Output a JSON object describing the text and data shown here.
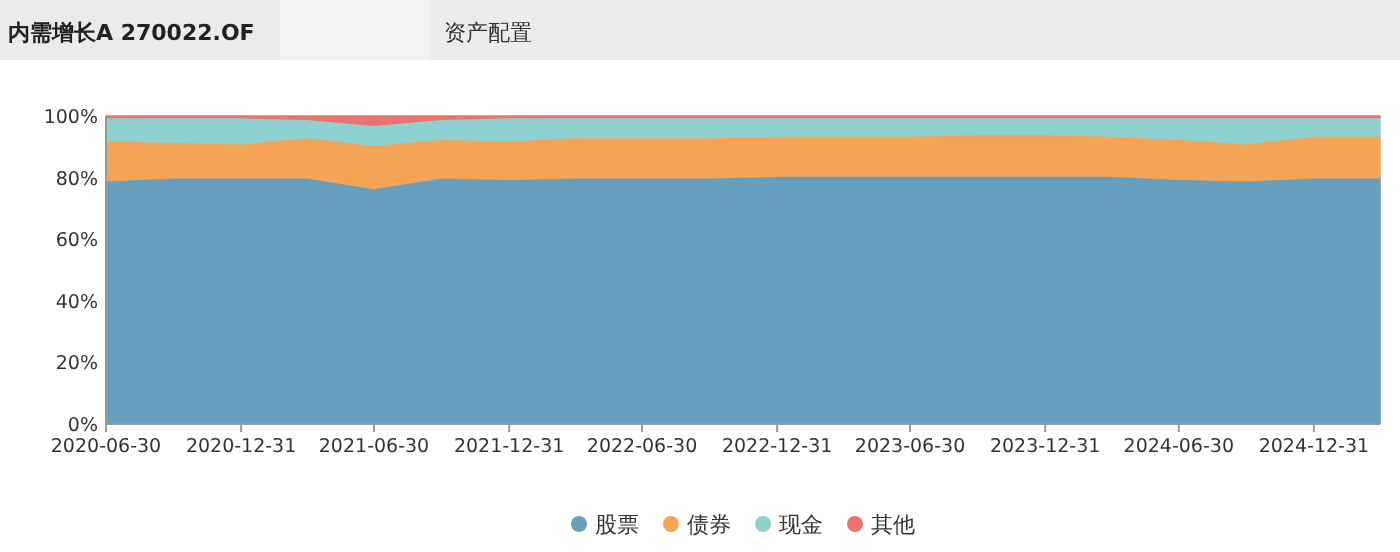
{
  "chart_data": {
    "type": "area",
    "title": "内需增长A 270022.OF",
    "subtitle": "资产配置",
    "stacked": true,
    "x": [
      "2020-06-30",
      "2020-09-30",
      "2020-12-31",
      "2021-03-31",
      "2021-06-30",
      "2021-09-30",
      "2021-12-31",
      "2022-03-31",
      "2022-06-30",
      "2022-09-30",
      "2022-12-31",
      "2023-03-31",
      "2023-06-30",
      "2023-09-30",
      "2023-12-31",
      "2024-03-31",
      "2024-06-30",
      "2024-09-30",
      "2024-12-31",
      "2025-03-31"
    ],
    "series": [
      {
        "name": "股票",
        "color": "#67a0bf",
        "values": [
          79,
          80,
          80,
          80,
          76.5,
          80,
          79.5,
          80,
          80,
          80,
          80.5,
          80.5,
          80.5,
          80.5,
          80.5,
          80.5,
          79.5,
          79,
          80,
          80
        ]
      },
      {
        "name": "债券",
        "color": "#f5a455",
        "values": [
          13,
          11.5,
          11,
          13,
          14,
          12.5,
          12.5,
          13,
          13,
          13,
          13,
          13,
          13,
          13.5,
          13.5,
          13,
          13,
          12,
          13.5,
          13.5
        ]
      },
      {
        "name": "现金",
        "color": "#8fd0d0",
        "values": [
          7.5,
          8,
          8.5,
          6,
          6.5,
          6.5,
          7.5,
          6.5,
          6.5,
          6.5,
          6,
          6,
          6,
          5.5,
          5.5,
          6,
          7,
          8.5,
          6,
          6
        ]
      },
      {
        "name": "其他",
        "color": "#e8736f",
        "values": [
          0.5,
          0.5,
          0.5,
          1,
          3,
          1,
          0.5,
          0.5,
          0.5,
          0.5,
          0.5,
          0.5,
          0.5,
          0.5,
          0.5,
          0.5,
          0.5,
          0.5,
          0.5,
          0.5
        ]
      }
    ],
    "xlim": [
      "2020-06-30",
      "2025-03-31"
    ],
    "xticks": [
      "2020-06-30",
      "2020-12-31",
      "2021-06-30",
      "2021-12-31",
      "2022-06-30",
      "2022-12-31",
      "2023-06-30",
      "2023-12-31",
      "2024-06-30",
      "2024-12-31"
    ],
    "ylim": [
      0,
      100
    ],
    "yticks": [
      {
        "value": 0,
        "label": "0%"
      },
      {
        "value": 20,
        "label": "20%"
      },
      {
        "value": 40,
        "label": "40%"
      },
      {
        "value": 60,
        "label": "60%"
      },
      {
        "value": 80,
        "label": "80%"
      },
      {
        "value": 100,
        "label": "100%"
      }
    ],
    "legend": "bottom"
  }
}
